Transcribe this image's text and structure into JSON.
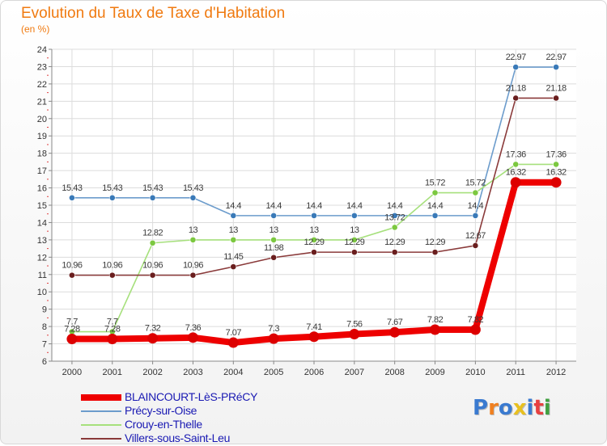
{
  "header": {
    "title": "Evolution du Taux de Taxe d'Habitation",
    "unit": "(en %)"
  },
  "brand": {
    "logo_text": "Proxiti",
    "logo_colors": [
      "#3a7ad0",
      "#f08020",
      "#3a7ad0",
      "#e8c020",
      "#3a7ad0",
      "#e84040",
      "#40a040"
    ]
  },
  "chart_data": {
    "type": "line",
    "title": "Evolution du Taux de Taxe d'Habitation",
    "ylabel": "(en %)",
    "xlabel": "",
    "categories": [
      "2000",
      "2001",
      "2002",
      "2003",
      "2004",
      "2005",
      "2006",
      "2007",
      "2008",
      "2009",
      "2010",
      "2011",
      "2012"
    ],
    "ylim": [
      6,
      24
    ],
    "yticks": [
      6,
      7,
      8,
      9,
      10,
      11,
      12,
      13,
      14,
      15,
      16,
      17,
      18,
      19,
      20,
      21,
      22,
      23,
      24
    ],
    "grid": true,
    "legend_position": "bottom-left",
    "series": [
      {
        "name": "BLAINCOURT-LèS-PRéCY",
        "color": "#ee0000",
        "dot_color": "#dd0000",
        "values": [
          7.28,
          7.28,
          7.32,
          7.36,
          7.07,
          7.3,
          7.41,
          7.56,
          7.67,
          7.82,
          7.82,
          16.32,
          16.32
        ],
        "labels": [
          "7.28",
          "7.28",
          "7.32",
          "7.36",
          "7.07",
          "7.3",
          "7.41",
          "7.56",
          "7.67",
          "7.82",
          "7.82",
          "16.32",
          "16.32"
        ]
      },
      {
        "name": "Précy-sur-Oise",
        "color": "#6c9ccc",
        "dot_color": "#3a7ab8",
        "values": [
          15.43,
          15.43,
          15.43,
          15.43,
          14.4,
          14.4,
          14.4,
          14.4,
          14.4,
          14.4,
          14.4,
          22.97,
          22.97
        ],
        "labels": [
          "15.43",
          "15.43",
          "15.43",
          "15.43",
          "14.4",
          "14.4",
          "14.4",
          "14.4",
          "14.4",
          "14.4",
          "14.4",
          "22.97",
          "22.97"
        ]
      },
      {
        "name": "Crouy-en-Thelle",
        "color": "#a6e07c",
        "dot_color": "#7cc840",
        "values": [
          7.7,
          7.7,
          12.82,
          13,
          13,
          13,
          13,
          13,
          13.72,
          15.72,
          15.72,
          17.36,
          17.36
        ],
        "labels": [
          "7.7",
          "7.7",
          "12.82",
          "13",
          "13",
          "13",
          "13",
          "13",
          "13.72",
          "15.72",
          "15.72",
          "17.36",
          "17.36"
        ]
      },
      {
        "name": "Villers-sous-Saint-Leu",
        "color": "#8a3a3a",
        "dot_color": "#6a1e1e",
        "values": [
          10.96,
          10.96,
          10.96,
          10.96,
          11.45,
          11.98,
          12.29,
          12.29,
          12.29,
          12.29,
          12.67,
          21.18,
          21.18
        ],
        "labels": [
          "10.96",
          "10.96",
          "10.96",
          "10.96",
          "11.45",
          "11.98",
          "12.29",
          "12.29",
          "12.29",
          "12.29",
          "12.67",
          "21.18",
          "21.18"
        ]
      }
    ]
  }
}
